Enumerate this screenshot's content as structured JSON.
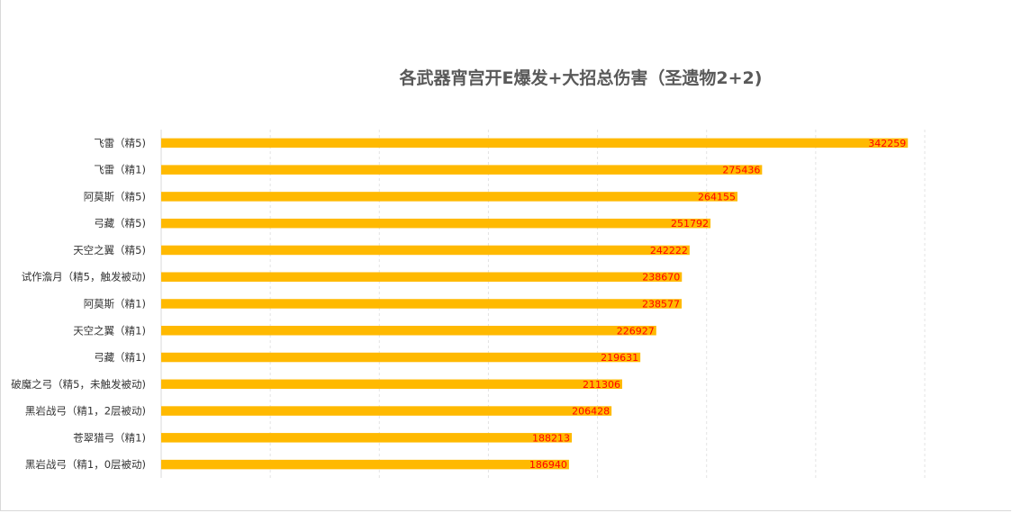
{
  "chart_data": {
    "type": "bar",
    "orientation": "horizontal",
    "title": "各武器宵宫开E爆发+大招总伤害（圣遗物2+2)",
    "categories": [
      "飞雷（精5)",
      "飞雷（精1)",
      "阿莫斯（精5)",
      "弓藏（精5)",
      "天空之翼（精5)",
      "试作澹月（精5，触发被动)",
      "阿莫斯（精1)",
      "天空之翼（精1)",
      "弓藏（精1)",
      "破魔之弓（精5，未触发被动)",
      "黑岩战弓（精1，2层被动)",
      "苍翠猎弓（精1)",
      "黑岩战弓（精1，0层被动)"
    ],
    "values": [
      342259,
      275436,
      264155,
      251792,
      242222,
      238670,
      238577,
      226927,
      219631,
      211306,
      206428,
      188213,
      186940
    ],
    "data_labels": [
      "342259",
      "275436",
      "264155",
      "251792",
      "242222",
      "238670",
      "238577",
      "226927",
      "219631",
      "211306",
      "206428",
      "188213",
      "186940"
    ],
    "xlim": [
      0,
      350000
    ],
    "grid": true,
    "legend": "none",
    "bar_color": "#FFB900",
    "label_color": "#FF0000"
  }
}
